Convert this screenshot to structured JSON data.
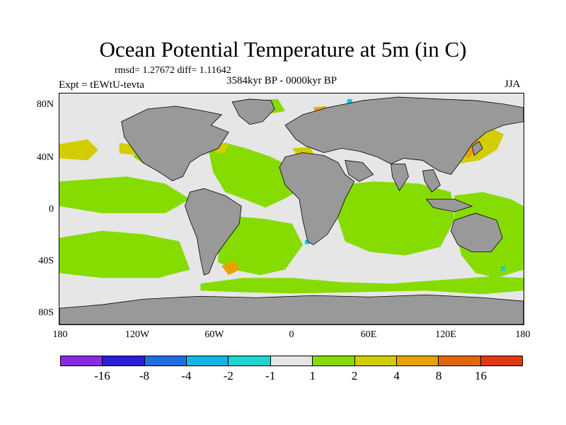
{
  "title": "Ocean Potential Temperature at 5m (in C)",
  "stats": "rmsd= 1.27672 diff= 1.11642",
  "period": "3584kyr BP - 0000kyr BP",
  "experiment": "Expt = tEWtU-tevta",
  "season": "JJA",
  "y_axis_labels": [
    "80N",
    "40N",
    "0",
    "40S",
    "80S"
  ],
  "x_axis_labels": [
    "180",
    "120W",
    "60W",
    "0",
    "60E",
    "120E",
    "180"
  ],
  "colorbar": {
    "colors": [
      "#8a2be2",
      "#2a1fd6",
      "#1e6fe0",
      "#14b4e6",
      "#1ed4d0",
      "#e6e6e6",
      "#86db00",
      "#d2cd00",
      "#e8a200",
      "#e0680a",
      "#e03a10"
    ],
    "labels": [
      "-16",
      "-8",
      "-4",
      "-2",
      "-1",
      "1",
      "2",
      "4",
      "8",
      "16"
    ]
  },
  "palette": {
    "ocean_light": "#e6e6e6",
    "ocean_green": "#86db00",
    "land": "#999999",
    "warm_yellow": "#d2cd00",
    "warm_orange": "#e8a200",
    "cool_cyan": "#14c8e6"
  }
}
